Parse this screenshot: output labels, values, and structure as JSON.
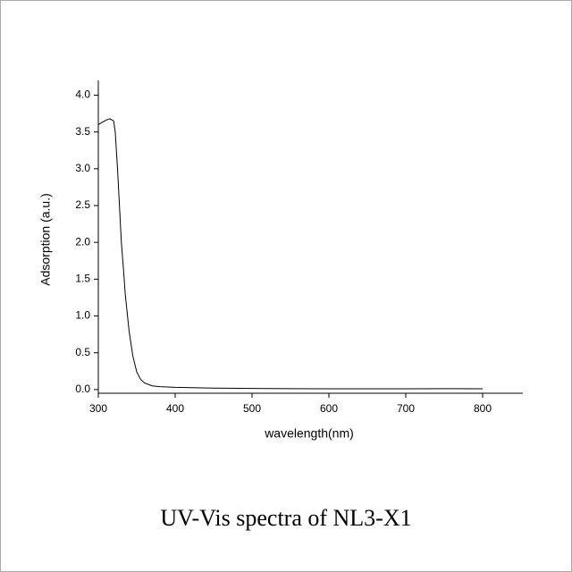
{
  "chart_data": {
    "type": "line",
    "title": "UV-Vis spectra of NL3-X1",
    "x_label": "wavelength(nm)",
    "y_label": "Adsorption (a.u.)",
    "x": [
      300,
      305,
      310,
      315,
      318,
      320,
      322,
      325,
      328,
      330,
      333,
      335,
      338,
      340,
      345,
      350,
      355,
      360,
      370,
      380,
      400,
      450,
      500,
      550,
      600,
      650,
      700,
      750,
      800
    ],
    "values": [
      3.6,
      3.63,
      3.66,
      3.68,
      3.66,
      3.65,
      3.5,
      3.0,
      2.4,
      2.0,
      1.6,
      1.3,
      1.0,
      0.8,
      0.45,
      0.24,
      0.14,
      0.09,
      0.05,
      0.04,
      0.03,
      0.02,
      0.015,
      0.012,
      0.01,
      0.01,
      0.01,
      0.012,
      0.01
    ],
    "color": "#000000",
    "xlim": [
      300,
      850
    ],
    "ylim": [
      -0.05,
      4.2
    ],
    "xticks": [
      300,
      400,
      500,
      600,
      700,
      800
    ],
    "yticks": [
      {
        "value": 0,
        "label": "0.0"
      },
      {
        "value": 0.5,
        "label": "0.5"
      },
      {
        "value": 1,
        "label": "1.0"
      },
      {
        "value": 1.5,
        "label": "1.5"
      },
      {
        "value": 2,
        "label": "2.0"
      },
      {
        "value": 2.5,
        "label": "2.5"
      },
      {
        "value": 3,
        "label": "3.0"
      },
      {
        "value": 3.5,
        "label": "3.5"
      },
      {
        "value": 4,
        "label": "4.0"
      }
    ]
  }
}
